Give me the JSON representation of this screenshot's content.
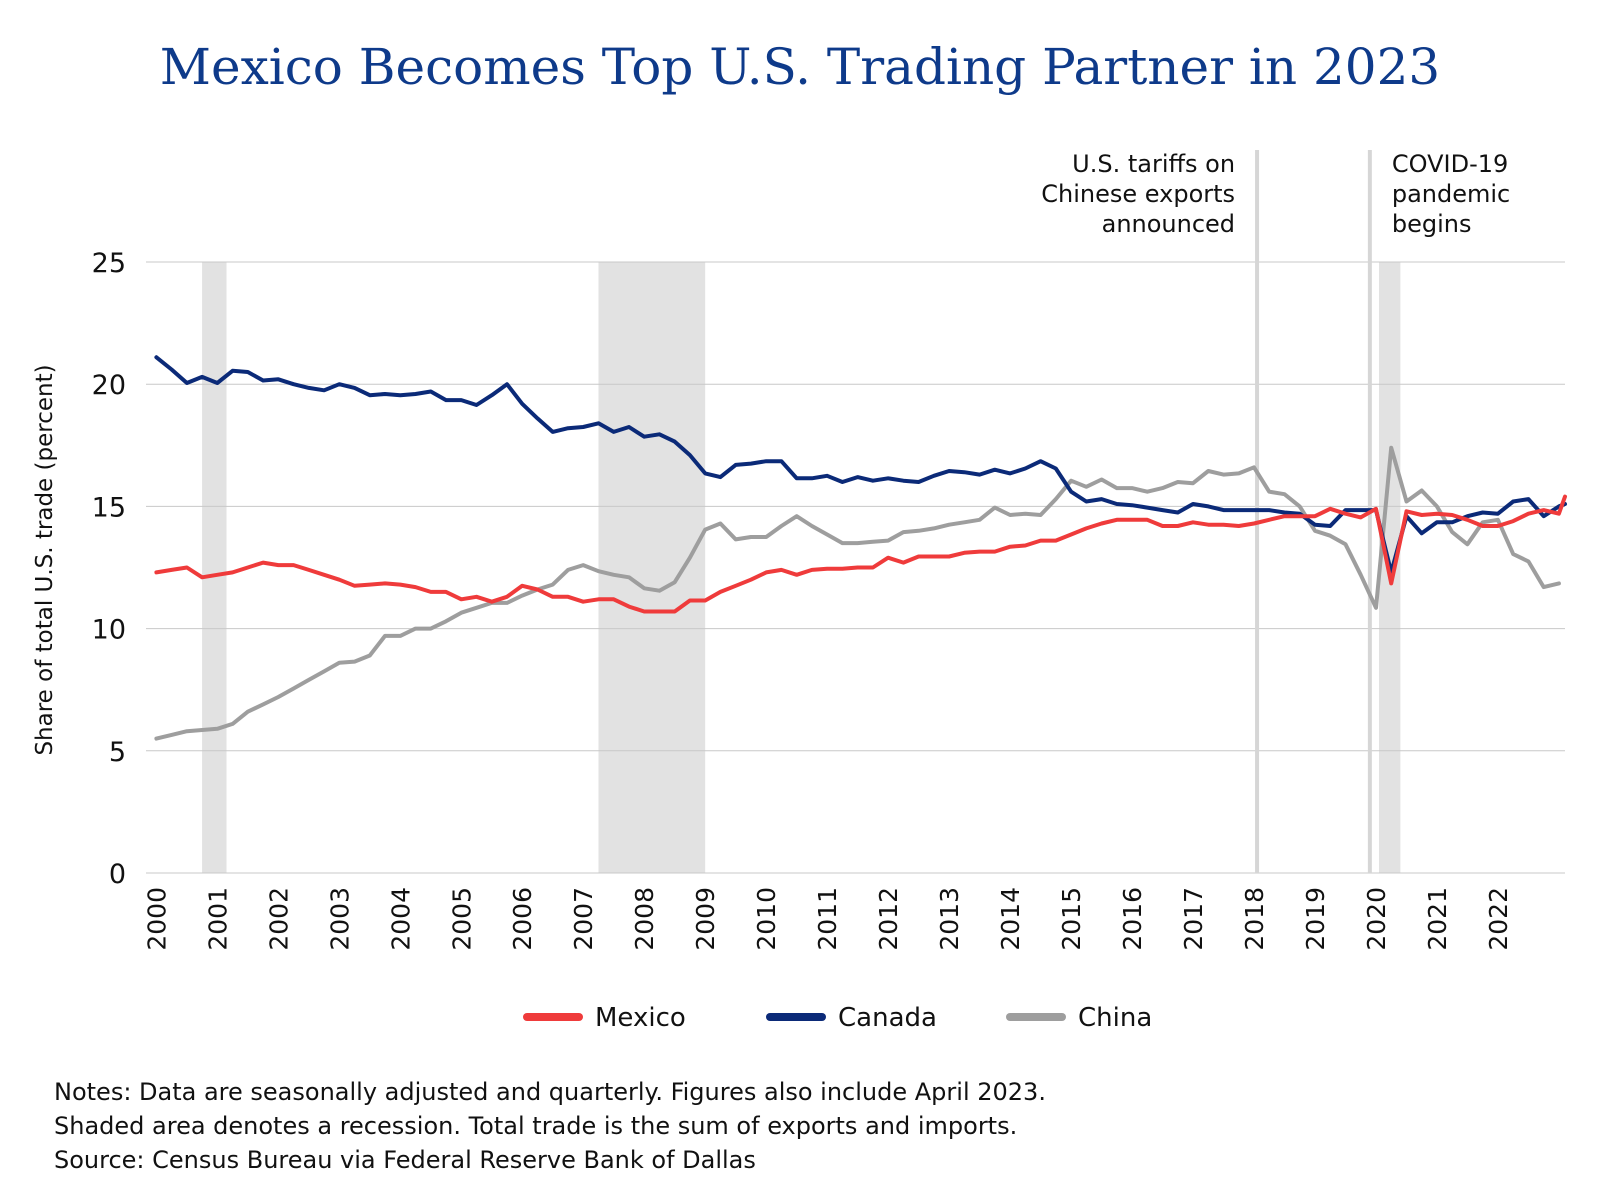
{
  "title": "Mexico Becomes Top U.S. Trading Partner in 2023",
  "notes": [
    "Notes: Data are seasonally adjusted and quarterly. Figures also include April 2023.",
    "Shaded area denotes a recession. Total trade is the sum of exports and imports.",
    "Source: Census Bureau via Federal Reserve Bank of Dallas"
  ],
  "chart_data": {
    "type": "line",
    "title": "Mexico Becomes Top U.S. Trading Partner in 2023",
    "xlabel": "",
    "ylabel": "Share of total U.S. trade (percent)",
    "ylim": [
      0,
      25
    ],
    "xlim": [
      1999.83,
      2023.1
    ],
    "yticks": [
      "0",
      "5",
      "10",
      "15",
      "20",
      "25"
    ],
    "ytick_values": [
      0,
      5,
      10,
      15,
      20,
      25
    ],
    "xticks": [
      "2000",
      "2001",
      "2002",
      "2003",
      "2004",
      "2005",
      "2006",
      "2007",
      "2008",
      "2009",
      "2010",
      "2011",
      "2012",
      "2013",
      "2014",
      "2015",
      "2016",
      "2017",
      "2018",
      "2019",
      "2020",
      "2021",
      "2022"
    ],
    "grid": true,
    "legend_position": "bottom",
    "recessions": [
      [
        2000.75,
        2001.15
      ],
      [
        2007.25,
        2009.0
      ],
      [
        2020.05,
        2020.4
      ]
    ],
    "events": [
      {
        "x": 2018.05,
        "label_lines": [
          "U.S. tariffs on",
          "Chinese exports",
          "announced"
        ],
        "align": "left-of-line"
      },
      {
        "x": 2019.9,
        "label_lines": [
          "COVID-19",
          "pandemic",
          "begins"
        ],
        "align": "right-of-line"
      }
    ],
    "series": [
      {
        "name": "Mexico",
        "color": "#ef3b3b",
        "points": [
          [
            2000.0,
            12.3
          ],
          [
            2000.25,
            12.4
          ],
          [
            2000.5,
            12.5
          ],
          [
            2000.75,
            12.1
          ],
          [
            2001.0,
            12.2
          ],
          [
            2001.25,
            12.3
          ],
          [
            2001.5,
            12.5
          ],
          [
            2001.75,
            12.7
          ],
          [
            2002.0,
            12.6
          ],
          [
            2002.25,
            12.6
          ],
          [
            2002.5,
            12.4
          ],
          [
            2002.75,
            12.2
          ],
          [
            2003.0,
            12.0
          ],
          [
            2003.25,
            11.75
          ],
          [
            2003.5,
            11.8
          ],
          [
            2003.75,
            11.85
          ],
          [
            2004.0,
            11.8
          ],
          [
            2004.25,
            11.7
          ],
          [
            2004.5,
            11.5
          ],
          [
            2004.75,
            11.5
          ],
          [
            2005.0,
            11.2
          ],
          [
            2005.25,
            11.3
          ],
          [
            2005.5,
            11.1
          ],
          [
            2005.75,
            11.3
          ],
          [
            2006.0,
            11.75
          ],
          [
            2006.25,
            11.6
          ],
          [
            2006.5,
            11.3
          ],
          [
            2006.75,
            11.3
          ],
          [
            2007.0,
            11.1
          ],
          [
            2007.25,
            11.2
          ],
          [
            2007.5,
            11.2
          ],
          [
            2007.75,
            10.9
          ],
          [
            2008.0,
            10.7
          ],
          [
            2008.25,
            10.7
          ],
          [
            2008.5,
            10.7
          ],
          [
            2008.75,
            11.15
          ],
          [
            2009.0,
            11.15
          ],
          [
            2009.25,
            11.5
          ],
          [
            2009.5,
            11.75
          ],
          [
            2009.75,
            12.0
          ],
          [
            2010.0,
            12.3
          ],
          [
            2010.25,
            12.4
          ],
          [
            2010.5,
            12.2
          ],
          [
            2010.75,
            12.4
          ],
          [
            2011.0,
            12.45
          ],
          [
            2011.25,
            12.45
          ],
          [
            2011.5,
            12.5
          ],
          [
            2011.75,
            12.5
          ],
          [
            2012.0,
            12.9
          ],
          [
            2012.25,
            12.7
          ],
          [
            2012.5,
            12.95
          ],
          [
            2012.75,
            12.95
          ],
          [
            2013.0,
            12.95
          ],
          [
            2013.25,
            13.1
          ],
          [
            2013.5,
            13.15
          ],
          [
            2013.75,
            13.15
          ],
          [
            2014.0,
            13.35
          ],
          [
            2014.25,
            13.4
          ],
          [
            2014.5,
            13.6
          ],
          [
            2014.75,
            13.6
          ],
          [
            2015.0,
            13.85
          ],
          [
            2015.25,
            14.1
          ],
          [
            2015.5,
            14.3
          ],
          [
            2015.75,
            14.45
          ],
          [
            2016.0,
            14.45
          ],
          [
            2016.25,
            14.45
          ],
          [
            2016.5,
            14.2
          ],
          [
            2016.75,
            14.2
          ],
          [
            2017.0,
            14.35
          ],
          [
            2017.25,
            14.25
          ],
          [
            2017.5,
            14.25
          ],
          [
            2017.75,
            14.2
          ],
          [
            2018.0,
            14.3
          ],
          [
            2018.25,
            14.45
          ],
          [
            2018.5,
            14.6
          ],
          [
            2018.75,
            14.6
          ],
          [
            2019.0,
            14.6
          ],
          [
            2019.25,
            14.9
          ],
          [
            2019.5,
            14.7
          ],
          [
            2019.75,
            14.55
          ],
          [
            2020.0,
            14.9
          ],
          [
            2020.25,
            11.85
          ],
          [
            2020.5,
            14.8
          ],
          [
            2020.75,
            14.65
          ],
          [
            2021.0,
            14.7
          ],
          [
            2021.25,
            14.65
          ],
          [
            2021.5,
            14.45
          ],
          [
            2021.75,
            14.2
          ],
          [
            2022.0,
            14.2
          ],
          [
            2022.25,
            14.4
          ],
          [
            2022.5,
            14.7
          ],
          [
            2022.75,
            14.85
          ],
          [
            2023.0,
            14.7
          ],
          [
            2023.1,
            15.4
          ]
        ]
      },
      {
        "name": "Canada",
        "color": "#0b2a78",
        "points": [
          [
            2000.0,
            21.1
          ],
          [
            2000.25,
            20.6
          ],
          [
            2000.5,
            20.05
          ],
          [
            2000.75,
            20.3
          ],
          [
            2001.0,
            20.05
          ],
          [
            2001.25,
            20.55
          ],
          [
            2001.5,
            20.5
          ],
          [
            2001.75,
            20.15
          ],
          [
            2002.0,
            20.2
          ],
          [
            2002.25,
            20.0
          ],
          [
            2002.5,
            19.85
          ],
          [
            2002.75,
            19.75
          ],
          [
            2003.0,
            20.0
          ],
          [
            2003.25,
            19.85
          ],
          [
            2003.5,
            19.55
          ],
          [
            2003.75,
            19.6
          ],
          [
            2004.0,
            19.55
          ],
          [
            2004.25,
            19.6
          ],
          [
            2004.5,
            19.7
          ],
          [
            2004.75,
            19.35
          ],
          [
            2005.0,
            19.35
          ],
          [
            2005.25,
            19.15
          ],
          [
            2005.5,
            19.55
          ],
          [
            2005.75,
            20.0
          ],
          [
            2006.0,
            19.2
          ],
          [
            2006.25,
            18.6
          ],
          [
            2006.5,
            18.05
          ],
          [
            2006.75,
            18.2
          ],
          [
            2007.0,
            18.25
          ],
          [
            2007.25,
            18.4
          ],
          [
            2007.5,
            18.05
          ],
          [
            2007.75,
            18.25
          ],
          [
            2008.0,
            17.85
          ],
          [
            2008.25,
            17.95
          ],
          [
            2008.5,
            17.65
          ],
          [
            2008.75,
            17.1
          ],
          [
            2009.0,
            16.35
          ],
          [
            2009.25,
            16.2
          ],
          [
            2009.5,
            16.7
          ],
          [
            2009.75,
            16.75
          ],
          [
            2010.0,
            16.85
          ],
          [
            2010.25,
            16.85
          ],
          [
            2010.5,
            16.15
          ],
          [
            2010.75,
            16.15
          ],
          [
            2011.0,
            16.25
          ],
          [
            2011.25,
            16.0
          ],
          [
            2011.5,
            16.2
          ],
          [
            2011.75,
            16.05
          ],
          [
            2012.0,
            16.15
          ],
          [
            2012.25,
            16.05
          ],
          [
            2012.5,
            16.0
          ],
          [
            2012.75,
            16.25
          ],
          [
            2013.0,
            16.45
          ],
          [
            2013.25,
            16.4
          ],
          [
            2013.5,
            16.3
          ],
          [
            2013.75,
            16.5
          ],
          [
            2014.0,
            16.35
          ],
          [
            2014.25,
            16.55
          ],
          [
            2014.5,
            16.85
          ],
          [
            2014.75,
            16.55
          ],
          [
            2015.0,
            15.6
          ],
          [
            2015.25,
            15.2
          ],
          [
            2015.5,
            15.3
          ],
          [
            2015.75,
            15.1
          ],
          [
            2016.0,
            15.05
          ],
          [
            2016.25,
            14.95
          ],
          [
            2016.5,
            14.85
          ],
          [
            2016.75,
            14.75
          ],
          [
            2017.0,
            15.1
          ],
          [
            2017.25,
            15.0
          ],
          [
            2017.5,
            14.85
          ],
          [
            2017.75,
            14.85
          ],
          [
            2018.0,
            14.85
          ],
          [
            2018.25,
            14.85
          ],
          [
            2018.5,
            14.75
          ],
          [
            2018.75,
            14.7
          ],
          [
            2019.0,
            14.25
          ],
          [
            2019.25,
            14.2
          ],
          [
            2019.5,
            14.85
          ],
          [
            2019.75,
            14.85
          ],
          [
            2020.0,
            14.85
          ],
          [
            2020.25,
            12.3
          ],
          [
            2020.5,
            14.6
          ],
          [
            2020.75,
            13.9
          ],
          [
            2021.0,
            14.35
          ],
          [
            2021.25,
            14.35
          ],
          [
            2021.5,
            14.6
          ],
          [
            2021.75,
            14.75
          ],
          [
            2022.0,
            14.7
          ],
          [
            2022.25,
            15.2
          ],
          [
            2022.5,
            15.3
          ],
          [
            2022.75,
            14.6
          ],
          [
            2023.0,
            15.0
          ],
          [
            2023.1,
            15.1
          ]
        ]
      },
      {
        "name": "China",
        "color": "#9e9e9e",
        "points": [
          [
            2000.0,
            5.5
          ],
          [
            2000.25,
            5.65
          ],
          [
            2000.5,
            5.8
          ],
          [
            2000.75,
            5.85
          ],
          [
            2001.0,
            5.9
          ],
          [
            2001.25,
            6.1
          ],
          [
            2001.5,
            6.6
          ],
          [
            2001.75,
            6.9
          ],
          [
            2002.0,
            7.2
          ],
          [
            2002.25,
            7.55
          ],
          [
            2002.5,
            7.9
          ],
          [
            2002.75,
            8.25
          ],
          [
            2003.0,
            8.6
          ],
          [
            2003.25,
            8.65
          ],
          [
            2003.5,
            8.9
          ],
          [
            2003.75,
            9.7
          ],
          [
            2004.0,
            9.7
          ],
          [
            2004.25,
            10.0
          ],
          [
            2004.5,
            10.0
          ],
          [
            2004.75,
            10.3
          ],
          [
            2005.0,
            10.65
          ],
          [
            2005.25,
            10.85
          ],
          [
            2005.5,
            11.05
          ],
          [
            2005.75,
            11.05
          ],
          [
            2006.0,
            11.35
          ],
          [
            2006.25,
            11.6
          ],
          [
            2006.5,
            11.8
          ],
          [
            2006.75,
            12.4
          ],
          [
            2007.0,
            12.6
          ],
          [
            2007.25,
            12.35
          ],
          [
            2007.5,
            12.2
          ],
          [
            2007.75,
            12.1
          ],
          [
            2008.0,
            11.65
          ],
          [
            2008.25,
            11.55
          ],
          [
            2008.5,
            11.9
          ],
          [
            2008.75,
            12.9
          ],
          [
            2009.0,
            14.05
          ],
          [
            2009.25,
            14.3
          ],
          [
            2009.5,
            13.65
          ],
          [
            2009.75,
            13.75
          ],
          [
            2010.0,
            13.75
          ],
          [
            2010.25,
            14.2
          ],
          [
            2010.5,
            14.6
          ],
          [
            2010.75,
            14.2
          ],
          [
            2011.0,
            13.85
          ],
          [
            2011.25,
            13.5
          ],
          [
            2011.5,
            13.5
          ],
          [
            2011.75,
            13.55
          ],
          [
            2012.0,
            13.6
          ],
          [
            2012.25,
            13.95
          ],
          [
            2012.5,
            14.0
          ],
          [
            2012.75,
            14.1
          ],
          [
            2013.0,
            14.25
          ],
          [
            2013.25,
            14.35
          ],
          [
            2013.5,
            14.45
          ],
          [
            2013.75,
            14.95
          ],
          [
            2014.0,
            14.65
          ],
          [
            2014.25,
            14.7
          ],
          [
            2014.5,
            14.65
          ],
          [
            2014.75,
            15.3
          ],
          [
            2015.0,
            16.05
          ],
          [
            2015.25,
            15.8
          ],
          [
            2015.5,
            16.1
          ],
          [
            2015.75,
            15.75
          ],
          [
            2016.0,
            15.75
          ],
          [
            2016.25,
            15.6
          ],
          [
            2016.5,
            15.75
          ],
          [
            2016.75,
            16.0
          ],
          [
            2017.0,
            15.95
          ],
          [
            2017.25,
            16.45
          ],
          [
            2017.5,
            16.3
          ],
          [
            2017.75,
            16.35
          ],
          [
            2018.0,
            16.6
          ],
          [
            2018.25,
            15.6
          ],
          [
            2018.5,
            15.5
          ],
          [
            2018.75,
            15.0
          ],
          [
            2019.0,
            14.0
          ],
          [
            2019.25,
            13.8
          ],
          [
            2019.5,
            13.45
          ],
          [
            2019.75,
            12.2
          ],
          [
            2020.0,
            10.85
          ],
          [
            2020.25,
            17.4
          ],
          [
            2020.5,
            15.2
          ],
          [
            2020.75,
            15.65
          ],
          [
            2021.0,
            15.0
          ],
          [
            2021.25,
            13.95
          ],
          [
            2021.5,
            13.45
          ],
          [
            2021.75,
            14.35
          ],
          [
            2022.0,
            14.45
          ],
          [
            2022.25,
            13.05
          ],
          [
            2022.5,
            12.75
          ],
          [
            2022.75,
            11.7
          ],
          [
            2023.0,
            11.85
          ]
        ]
      }
    ]
  }
}
